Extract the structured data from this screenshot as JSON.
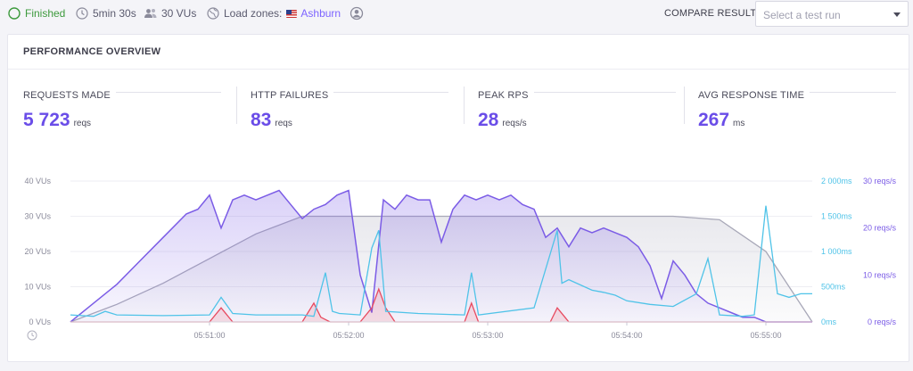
{
  "topbar": {
    "status": "Finished",
    "duration": "5min 30s",
    "vus": "30 VUs",
    "load_zones_label": "Load zones:",
    "load_zone": "Ashburn",
    "compare_label": "COMPARE RESULT",
    "compare_placeholder": "Select a test run"
  },
  "panel": {
    "title": "PERFORMANCE OVERVIEW",
    "metrics": [
      {
        "label": "REQUESTS MADE",
        "value": "5 723",
        "unit": "reqs"
      },
      {
        "label": "HTTP FAILURES",
        "value": "83",
        "unit": "reqs"
      },
      {
        "label": "PEAK RPS",
        "value": "28",
        "unit": "reqs/s"
      },
      {
        "label": "AVG RESPONSE TIME",
        "value": "267",
        "unit": "ms"
      }
    ]
  },
  "colors": {
    "vus": "#a8a8b8",
    "rps": "#7b5ce6",
    "response": "#4fc3e8",
    "failures": "#e84a5f",
    "accent": "#6a4de8"
  },
  "chart_data": {
    "type": "line",
    "x_ticks": [
      "05:51:00",
      "05:52:00",
      "05:53:00",
      "05:54:00",
      "05:55:00"
    ],
    "y_left_ticks": [
      "0 VUs",
      "10 VUs",
      "20 VUs",
      "30 VUs",
      "40 VUs"
    ],
    "y_right_ms_ticks": [
      "0ms",
      "500ms",
      "1 000ms",
      "1 500ms",
      "2 000ms"
    ],
    "y_right_rps_ticks": [
      "0 reqs/s",
      "10 reqs/s",
      "20 reqs/s",
      "30 reqs/s"
    ],
    "x_range_seconds": [
      0,
      320
    ],
    "vus_axis_range": [
      0,
      40
    ],
    "ms_axis_range": [
      0,
      2000
    ],
    "rps_axis_range": [
      0,
      30
    ],
    "series": [
      {
        "key": "vus",
        "x": [
          0,
          20,
          40,
          60,
          80,
          100,
          120,
          140,
          160,
          180,
          200,
          220,
          240,
          260,
          280,
          300,
          310,
          320
        ],
        "values": [
          0,
          5,
          11,
          18,
          25,
          30,
          30,
          30,
          30,
          30,
          30,
          30,
          30,
          30,
          29,
          20,
          10,
          0
        ]
      },
      {
        "key": "rps",
        "x": [
          0,
          10,
          20,
          30,
          40,
          50,
          55,
          60,
          65,
          70,
          75,
          80,
          85,
          90,
          95,
          100,
          105,
          110,
          115,
          120,
          125,
          130,
          135,
          140,
          145,
          150,
          155,
          160,
          165,
          170,
          175,
          180,
          185,
          190,
          195,
          200,
          205,
          210,
          215,
          220,
          225,
          230,
          235,
          240,
          245,
          250,
          255,
          260,
          265,
          270,
          275,
          280,
          285,
          290,
          295,
          300,
          305,
          310,
          315,
          320
        ],
        "values": [
          0,
          4,
          8,
          13,
          18,
          23,
          24,
          27,
          20,
          26,
          27,
          26,
          27,
          28,
          25,
          22,
          24,
          25,
          27,
          28,
          10,
          2,
          26,
          24,
          27,
          26,
          26,
          17,
          24,
          27,
          26,
          27,
          26,
          27,
          25,
          24,
          18,
          20,
          16,
          20,
          19,
          20,
          19,
          18,
          16,
          12,
          5,
          13,
          10,
          6,
          4,
          3,
          2,
          1,
          1,
          0,
          0,
          0,
          0,
          0
        ]
      },
      {
        "key": "response",
        "x": [
          0,
          10,
          15,
          20,
          40,
          60,
          65,
          70,
          80,
          100,
          105,
          110,
          113,
          116,
          125,
          130,
          133,
          136,
          150,
          170,
          173,
          176,
          200,
          210,
          212,
          215,
          225,
          230,
          235,
          240,
          250,
          260,
          270,
          275,
          280,
          290,
          295,
          300,
          305,
          310,
          315,
          320
        ],
        "values": [
          100,
          80,
          150,
          100,
          90,
          100,
          350,
          120,
          100,
          100,
          80,
          700,
          150,
          120,
          100,
          1050,
          1300,
          150,
          120,
          100,
          700,
          100,
          200,
          1300,
          550,
          600,
          450,
          420,
          380,
          300,
          250,
          220,
          400,
          900,
          100,
          80,
          100,
          1650,
          400,
          350,
          400,
          400
        ]
      },
      {
        "key": "failures",
        "x": [
          0,
          60,
          65,
          70,
          100,
          105,
          108,
          112,
          125,
          130,
          133,
          136,
          140,
          150,
          170,
          173,
          176,
          200,
          207,
          210,
          215,
          320
        ],
        "values": [
          0,
          0,
          3,
          0,
          0,
          4,
          1,
          0,
          0,
          3,
          7,
          3,
          0,
          0,
          0,
          4,
          0,
          0,
          0,
          3,
          0,
          0
        ]
      }
    ]
  }
}
